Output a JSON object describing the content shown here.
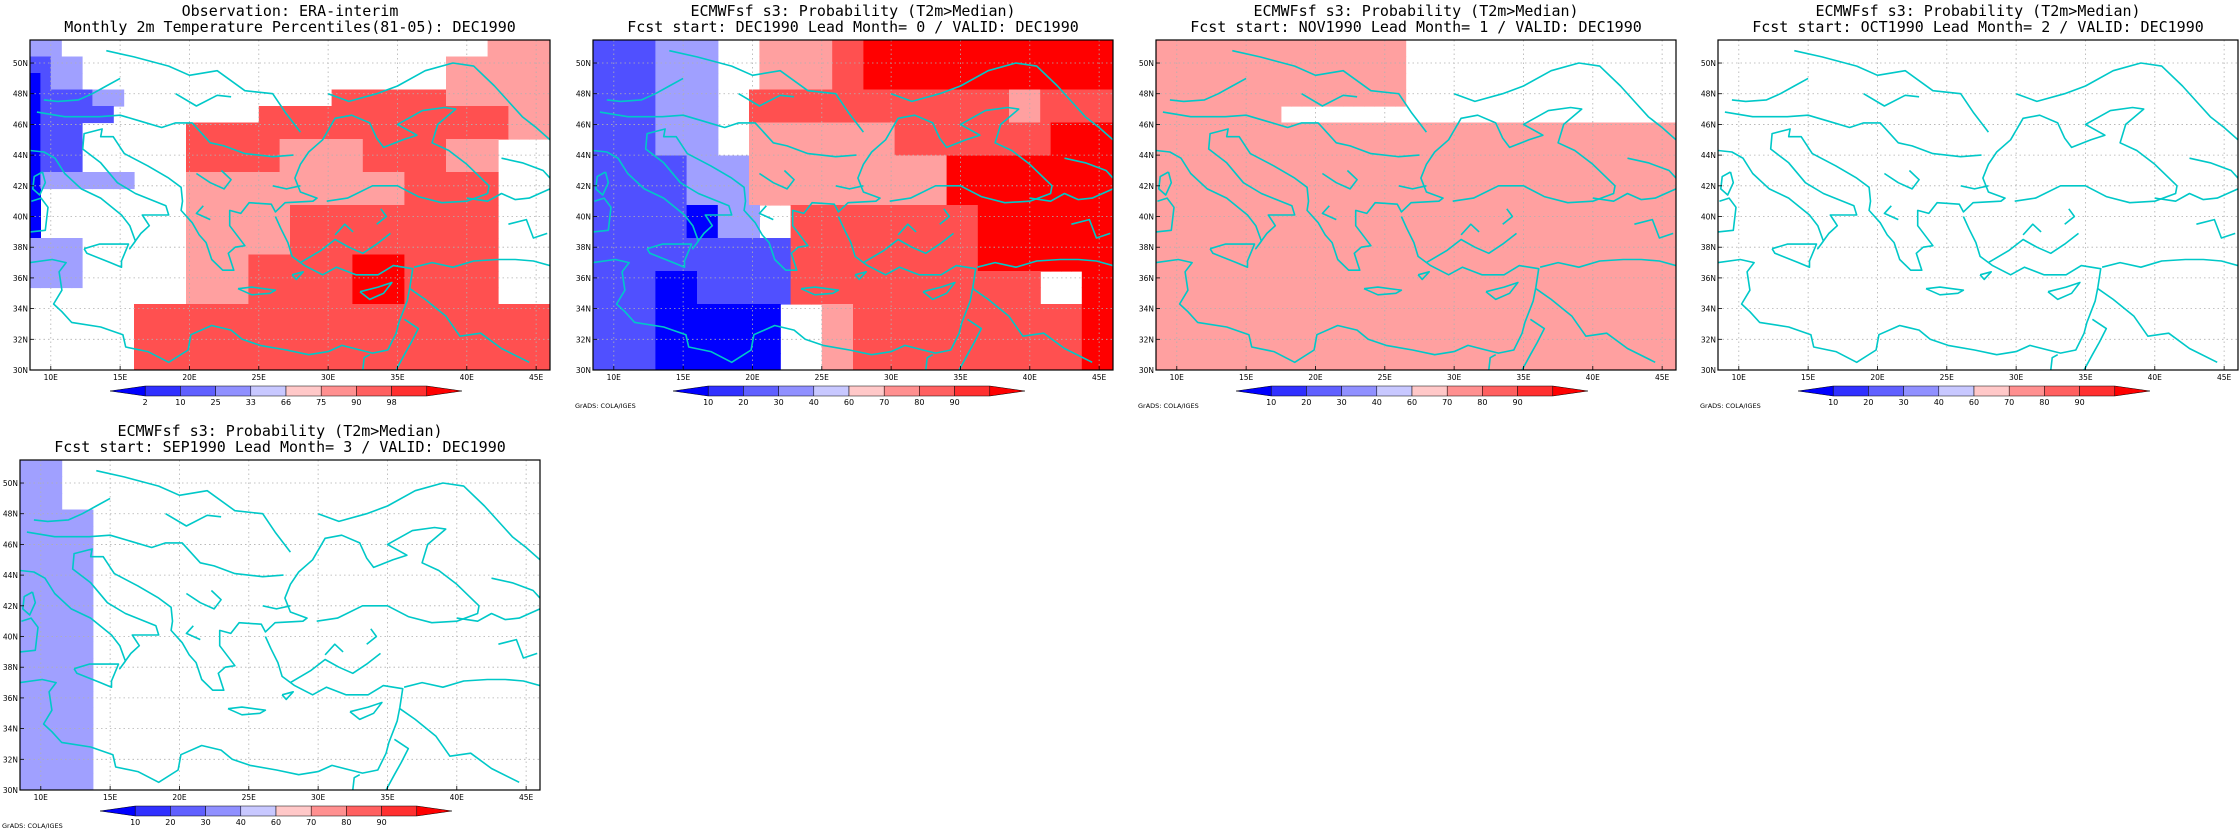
{
  "panels": [
    {
      "id": "obs",
      "title1": "Observation: ERA-interim",
      "title2": "Monthly 2m Temperature Percentiles(81-05): DEC1990",
      "colorbar": [
        "2",
        "10",
        "25",
        "33",
        "66",
        "75",
        "90",
        "98"
      ],
      "credit": "",
      "grid": [
        "cccWWWWWWWWWWWWWWWWWWWWWWWWWWWWWWWWWWWWWWWWWLLLLLL",
        "bbcccWWWWWWWWWWWWWWWWWWWWWWWWWWWWWWWWWWWLLLLLLLLLL",
        "abcccWWWWWWWWWWWWWWWWWWWWWWWWWWWWWWWWWWWLLLLLLLLLL",
        "abbbbbcccWWWWWWWWWWWWWWWWWWWWMMMMMMMMMMMLLLLLLLLLL",
        "abbbbbbbWWWWWWWWWWWWWWMMMMMMMMMMMMMMMMMMMMMMMMLLLL",
        "abbbbWWWWWWWWWWMMMMMMMMMMMMMMMMMMMMMMMMMMMMMMMLLLL",
        "abbbbWWWWWWWWWWMMMMMMMMMLLLLLLLLMMMMMMMMLLLLLWWWWW",
        "abbbbWWWWWWWWWWMMMMMMMMMLLLLLLLLMMMMMMMMLLLLLWWWWW",
        "acccccccccWWWWWLLLLLLLLLLLLLLLLLLLLLMMMMMMMMMWWWWW",
        "aWWWWWWWWWWWWWWLLLLLLLLLLLLLLLLLLLLLMMMMMMMMMWWWWW",
        "aWWWWWWWWWWWWWWLLLLLLLLLLMMMMMMMMMMMMMMMMMMMMWWWWW",
        "aWWWWWWWWWWWWWWLLLLLLLLLLMMMMMMMMMMMMMMMMMMMMWWWWW",
        "cccccWWWWWWWWWWLLLLLLLLLLMMMMMMMMMMMMMMMMMMMMWWWWW",
        "cccccWWWWWWWWWWLLLLLLMMMMMMMMMMHHHHHMMMMMMMMMWWWWW",
        "cccccWWWWWWWWWWLLLLLLMMMMMMMMMMHHHHHMMMMMMMMMWWWWW",
        "WWWWWWWWWWWWWWWLLLLLLMMMMMMMMMMHHHHHMMMMMMMMMWWWWW",
        "WWWWWWWWWWMMMMMMMMMMMMMMMMMMMMMMMMMMMMMMMMMMMMMMMM",
        "WWWWWWWWWWMMMMMMMMMMMMMMMMMMMMMMMMMMMMMMMMMMMMMMMM",
        "WWWWWWWWWWMMMMMMMMMMMMMMMMMMMMMMMMMMMMMMMMMMMMMMMM",
        "WWWWWWWWWWMMMMMMMMMMMMMMMMMMMMMMMMMMMMMMMMMMMMMMMM"
      ]
    },
    {
      "id": "lead0",
      "title1": "ECMWFsf s3: Probability (T2m>Median)",
      "title2": "Fcst start: DEC1990  Lead Month= 0 / VALID: DEC1990",
      "colorbar": [
        "10",
        "20",
        "30",
        "40",
        "60",
        "70",
        "80",
        "90"
      ],
      "credit": "GrADS: COLA/IGES",
      "grid": [
        "bbbbbbccccccWWWWLLLLLLLMMMHHHHHHHHHHHHHHHHHHHHHHHH",
        "bbbbbbccccccWWWWLLLLLLLMMMHHHHHHHHHHHHHHHHHHHHHHHH",
        "bbbbbbccccccWWWWLLLLLLLMMMHHHHHHHHHHHHHHHHHHHHHHHH",
        "bbbbbbccccccWWWMMMMMMMMMMMMMMMMMMMMMMMMMLLLMMMMMMM",
        "bbbbbbccccccWWWMMMMMMMMMMMMMMMMMMMMMMMMMLLLMMMMMMM",
        "bbbbbbccccccWWWLLLLLLLLLLLLLLMMMMMMMMMMMMMMMHHHHHH",
        "bbbbbbccccccWWWLLLLLLLLLLLLLLMMMMMMMMMMMMMMMHHHHHH",
        "bbbbbbbbbccccccLLLLLLLLLLLLLLLLLLLHHHHHHHHHHHHHHHH",
        "bbbbbbbbbccccccLLLLLLLLLLLLLLLLLLLHHHHHHHHHHHHHHHH",
        "bbbbbbbbbccccccLLLLLLLLLLLLLLLLLLLHHHHHHHHHHHHHHHH",
        "bbbbbbbbbaaaccccWWWMMMMMMMMMMMMMMMMMMHHHHHHHHHHHHH",
        "bbbbbbbbbaaaccccWWWMMMMMMMMMMMMMMMMMMHHHHHHHHHHHHH",
        "bbbbbbbbbbbbbbbbbbbMMMMMMMMMMMMMMMMMMHHHHHHHHHHHHH",
        "bbbbbbbbbbbbbbbbbbbMMMMMMMMMMMMMMMMMMHHHHHHHHHHHHH",
        "bbbbbbaaaabbbbbbbbbMMMMMMMMMMMMMMMMMMMMMMMMWWWWHHH",
        "bbbbbbaaaabbbbbbbbbMMMMMMMMMMMMMMMMMMMMMMMMWWWWHHH",
        "bbbbbbaaaaaaaaaaaaWWWWLLLMMMMMMMMMMMMMMMMMMMMMMHHH",
        "bbbbbbaaaaaaaaaaaaWWWWLLLMMMMMMMMMMMMMMMMMMMMMMHHH",
        "bbbbbbaaaaaaaaaaaaWWWWLLLMMMMMMMMMMMMMMMMMMMMMMHHH",
        "bbbbbbaaaaaaaaaaaaWWWWLLLMMMMMMMMMMMMMMMMMMMMMMHHH"
      ]
    },
    {
      "id": "lead1",
      "title1": "ECMWFsf s3: Probability (T2m>Median)",
      "title2": "Fcst start: NOV1990  Lead Month= 1 / VALID: DEC1990",
      "colorbar": [
        "10",
        "20",
        "30",
        "40",
        "60",
        "70",
        "80",
        "90"
      ],
      "credit": "GrADS: COLA/IGES",
      "grid": [
        "LLLLLLLLLLLLLLLLLLLLLLLLWWWWWWWWWWWWWWWWWWWWWWWWWW",
        "LLLLLLLLLLLLLLLLLLLLLLLLWWWWWWWWWWWWWWWWWWWWWWWWWW",
        "LLLLLLLLLLLLLLLLLLLLLLLLWWWWWWWWWWWWWWWWWWWWWWWWWW",
        "LLLLLLLLLLLLLLLLLLLLLLLLWWWWWWWWWWWWWWWWWWWWWWWWWW",
        "LLLLLLLLLLLLWWWWWWWWWWWWWWWWWWWWWWWWWWWWWWWWWWWWWW",
        "LLLLLLLLLLLLLLLLLLLLLLLLLLLLLLLLLLLLLLLLLLLLLLLLLL",
        "LLLLLLLLLLLLLLLLLLLLLLLLLLLLLLLLLLLLLLLLLLLLLLLLLL",
        "LLLLLLLLLLLLLLLLLLLLLLLLLLLLLLLLLLLLLLLLLLLLLLLLLL",
        "LLLLLLLLLLLLLLLLLLLLLLLLLLLLLLLLLLLLLLLLLLLLLLLLLL",
        "LLLLLLLLLLLLLLLLLLLLLLLLLLLLLLLLLLLLLLLLLLLLLLLLLL",
        "LLLLLLLLLLLLLLLLLLLLLLLLLLLLLLLLLLLLLLLLLLLLLLLLLL",
        "LLLLLLLLLLLLLLLLLLLLLLLLLLLLLLLLLLLLLLLLLLLLLLLLLL",
        "LLLLLLLLLLLLLLLLLLLLLLLLLLLLLLLLLLLLLLLLLLLLLLLLLL",
        "LLLLLLLLLLLLLLLLLLLLLLLLLLLLLLLLLLLLLLLLLLLLLLLLLL",
        "LLLLLLLLLLLLLLLLLLLLLLLLLLLLLLLLLLLLLLLLLLLLLLLLLL",
        "LLLLLLLLLLLLLLLLLLLLLLLLLLLLLLLLLLLLLLLLLLLLLLLLLL",
        "LLLLLLLLLLLLLLLLLLLLLLLLLLLLLLLLLLLLLLLLLLLLLLLLLL",
        "LLLLLLLLLLLLLLLLLLLLLLLLLLLLLLLLLLLLLLLLLLLLLLLLLL",
        "LLLLLLLLLLLLLLLLLLLLLLLLLLLLLLLLLLLLLLLLLLLLLLLLLL",
        "LLLLLLLLLLLLLLLLLLLLLLLLLLLLLLLLLLLLLLLLLLLLLLLLLL"
      ]
    },
    {
      "id": "lead2",
      "title1": "ECMWFsf s3: Probability (T2m>Median)",
      "title2": "Fcst start: OCT1990  Lead Month= 2 / VALID: DEC1990",
      "colorbar": [
        "10",
        "20",
        "30",
        "40",
        "60",
        "70",
        "80",
        "90"
      ],
      "credit": "GrADS: COLA/IGES",
      "grid": [
        "WWWWWWWWWWWWWWWWWWWWWWWWWWWWWWWWWWWWWWWWWWWWWWWWWW",
        "WWWWWWWWWWWWWWWWWWWWWWWWWWWWWWWWWWWWWWWWWWWWWWWWWW",
        "WWWWWWWWWWWWWWWWWWWWWWWWWWWWWWWWWWWWWWWWWWWWWWWWWW",
        "WWWWWWWWWWWWWWWWWWWWWWWWWWWWWWWWWWWWWWWWWWWWWWWWWW",
        "WWWWWWWWWWWWWWWWWWWWWWWWWWWWWWWWWWWWWWWWWWWWWWWWWW",
        "WWWWWWWWWWWWWWWWWWWWWWWWWWWWWWWWWWWWWWWWWWWWWWWWWW",
        "WWWWWWWWWWWWWWWWWWWWWWWWWWWWWWWWWWWWWWWWWWWWWWWWWW",
        "WWWWWWWWWWWWWWWWWWWWWWWWWWWWWWWWWWWWWWWWWWWWWWWWWW",
        "WWWWWWWWWWWWWWWWWWWWWWWWWWWWWWWWWWWWWWWWWWWWWWWWWW",
        "WWWWWWWWWWWWWWWWWWWWWWWWWWWWWWWWWWWWWWWWWWWWWWWWWW",
        "WWWWWWWWWWWWWWWWWWWWWWWWWWWWWWWWWWWWWWWWWWWWWWWWWW",
        "WWWWWWWWWWWWWWWWWWWWWWWWWWWWWWWWWWWWWWWWWWWWWWWWWW",
        "WWWWWWWWWWWWWWWWWWWWWWWWWWWWWWWWWWWWWWWWWWWWWWWWWW",
        "WWWWWWWWWWWWWWWWWWWWWWWWWWWWWWWWWWWWWWWWWWWWWWWWWW",
        "WWWWWWWWWWWWWWWWWWWWWWWWWWWWWWWWWWWWWWWWWWWWWWWWWW",
        "WWWWWWWWWWWWWWWWWWWWWWWWWWWWWWWWWWWWWWWWWWWWWWWWWW",
        "WWWWWWWWWWWWWWWWWWWWWWWWWWWWWWWWWWWWWWWWWWWWWWWWWW",
        "WWWWWWWWWWWWWWWWWWWWWWWWWWWWWWWWWWWWWWWWWWWWWWWWWW",
        "WWWWWWWWWWWWWWWWWWWWWWWWWWWWWWWWWWWWWWWWWWWWWWWWWW",
        "WWWWWWWWWWWWWWWWWWWWWWWWWWWWWWWWWWWWWWWWWWWWWWWWWW"
      ]
    },
    {
      "id": "lead3",
      "title1": "ECMWFsf s3: Probability (T2m>Median)",
      "title2": "Fcst start: SEP1990  Lead Month= 3 / VALID: DEC1990",
      "colorbar": [
        "10",
        "20",
        "30",
        "40",
        "60",
        "70",
        "80",
        "90"
      ],
      "credit": "GrADS: COLA/IGES",
      "grid": [
        "ccccWWWWWWWWWWWWWWWWWWWWWWWWWWWWWWWWWWWWWWWWWWWWWW",
        "ccccWWWWWWWWWWWWWWWWWWWWWWWWWWWWWWWWWWWWWWWWWWWWWW",
        "ccccWWWWWWWWWWWWWWWWWWWWWWWWWWWWWWWWWWWWWWWWWWWWWW",
        "cccccccWWWWWWWWWWWWWWWWWWWWWWWWWWWWWWWWWWWWWWWWWWW",
        "cccccccWWWWWWWWWWWWWWWWWWWWWWWWWWWWWWWWWWWWWWWWWWW",
        "cccccccWWWWWWWWWWWWWWWWWWWWWWWWWWWWWWWWWWWWWWWWWWW",
        "cccccccWWWWWWWWWWWWWWWWWWWWWWWWWWWWWWWWWWWWWWWWWWW",
        "cccccccWWWWWWWWWWWWWWWWWWWWWWWWWWWWWWWWWWWWWWWWWWW",
        "cccccccWWWWWWWWWWWWWWWWWWWWWWWWWWWWWWWWWWWWWWWWWWW",
        "cccccccWWWWWWWWWWWWWWWWWWWWWWWWWWWWWWWWWWWWWWWWWWW",
        "cccccccWWWWWWWWWWWWWWWWWWWWWWWWWWWWWWWWWWWWWWWWWWW",
        "cccccccWWWWWWWWWWWWWWWWWWWWWWWWWWWWWWWWWWWWWWWWWWW",
        "cccccccWWWWWWWWWWWWWWWWWWWWWWWWWWWWWWWWWWWWWWWWWWW",
        "cccccccWWWWWWWWWWWWWWWWWWWWWWWWWWWWWWWWWWWWWWWWWWW",
        "cccccccWWWWWWWWWWWWWWWWWWWWWWWWWWWWWWWWWWWWWWWWWWW",
        "cccccccWWWWWWWWWWWWWWWWWWWWWWWWWWWWWWWWWWWWWWWWWWW",
        "cccccccWWWWWWWWWWWWWWWWWWWWWWWWWWWWWWWWWWWWWWWWWWW",
        "cccccccWWWWWWWWWWWWWWWWWWWWWWWWWWWWWWWWWWWWWWWWWWW",
        "cccccccWWWWWWWWWWWWWWWWWWWWWWWWWWWWWWWWWWWWWWWWWWW",
        "cccccccWWWWWWWWWWWWWWWWWWWWWWWWWWWWWWWWWWWWWWWWWWW"
      ]
    }
  ],
  "lat_labels": [
    "30N",
    "32N",
    "34N",
    "36N",
    "38N",
    "40N",
    "42N",
    "44N",
    "46N",
    "48N",
    "50N"
  ],
  "lon_labels": [
    "10E",
    "15E",
    "20E",
    "25E",
    "30E",
    "35E",
    "40E",
    "45E"
  ],
  "colors": {
    "W": "#ffffff",
    "a": "#0000ff",
    "b": "#5050ff",
    "c": "#a0a0ff",
    "L": "#ffa0a0",
    "M": "#ff5050",
    "H": "#ff0000",
    "coast": "#00c8c8",
    "grid": "#b0b0b0"
  },
  "colorbar_fills": [
    "#0000ff",
    "#3030ff",
    "#6060ff",
    "#9090ff",
    "#c8c8ff",
    "#ffc8c8",
    "#ff9090",
    "#ff6060",
    "#ff3030",
    "#ff0000"
  ]
}
